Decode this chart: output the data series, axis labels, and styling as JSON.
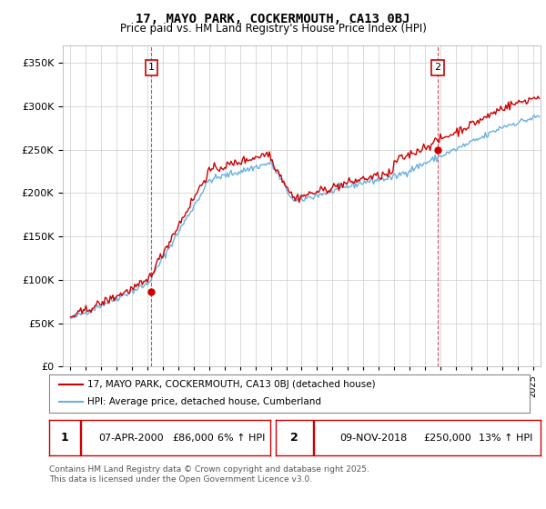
{
  "title": "17, MAYO PARK, COCKERMOUTH, CA13 0BJ",
  "subtitle": "Price paid vs. HM Land Registry's House Price Index (HPI)",
  "legend_line1": "17, MAYO PARK, COCKERMOUTH, CA13 0BJ (detached house)",
  "legend_line2": "HPI: Average price, detached house, Cumberland",
  "annotation1_date": "07-APR-2000",
  "annotation1_price": "£86,000",
  "annotation1_hpi": "6% ↑ HPI",
  "annotation2_date": "09-NOV-2018",
  "annotation2_price": "£250,000",
  "annotation2_hpi": "13% ↑ HPI",
  "footer": "Contains HM Land Registry data © Crown copyright and database right 2025.\nThis data is licensed under the Open Government Licence v3.0.",
  "ylim": [
    0,
    370000
  ],
  "yticks": [
    0,
    50000,
    100000,
    150000,
    200000,
    250000,
    300000,
    350000
  ],
  "hpi_color": "#6ab0e0",
  "price_color": "#cc0000",
  "background_color": "#ffffff",
  "plot_bg_color": "#ffffff",
  "grid_color": "#cccccc"
}
